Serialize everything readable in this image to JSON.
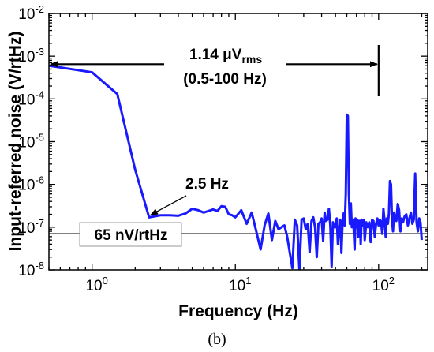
{
  "chart_data": {
    "type": "line",
    "xlabel": "Frequency (Hz)",
    "ylabel": "Input-referred noise (V/rtHz)",
    "xscale": "log",
    "yscale": "log",
    "xlim": [
      0.5,
      220
    ],
    "ylim": [
      1e-08,
      0.01
    ],
    "x_ticks": [
      {
        "value": 1,
        "base": "10",
        "exp": "0"
      },
      {
        "value": 10,
        "base": "10",
        "exp": "1"
      },
      {
        "value": 100,
        "base": "10",
        "exp": "2"
      }
    ],
    "y_ticks": [
      {
        "value": 1e-08,
        "base": "10",
        "exp": "-8"
      },
      {
        "value": 1e-07,
        "base": "10",
        "exp": "-7"
      },
      {
        "value": 1e-06,
        "base": "10",
        "exp": "-6"
      },
      {
        "value": 1e-05,
        "base": "10",
        "exp": "-5"
      },
      {
        "value": 0.0001,
        "base": "10",
        "exp": "-4"
      },
      {
        "value": 0.001,
        "base": "10",
        "exp": "-3"
      },
      {
        "value": 0.01,
        "base": "10",
        "exp": "-2"
      }
    ],
    "series": [
      {
        "color": "#1a1aff",
        "points": [
          [
            0.5,
            0.0006
          ],
          [
            1.0,
            0.00042
          ],
          [
            1.5,
            0.00013
          ],
          [
            2.0,
            2.2e-06
          ],
          [
            2.5,
            1.7e-07
          ],
          [
            3.0,
            1.9e-07
          ],
          [
            3.5,
            1.9e-07
          ],
          [
            4.0,
            1.85e-07
          ],
          [
            4.5,
            2.1e-07
          ],
          [
            5.0,
            2.7e-07
          ],
          [
            5.5,
            2.5e-07
          ],
          [
            6.0,
            2.2e-07
          ],
          [
            6.5,
            2.4e-07
          ],
          [
            7.0,
            2.6e-07
          ],
          [
            7.5,
            2.4e-07
          ],
          [
            8.0,
            3.1e-07
          ],
          [
            8.5,
            3e-07
          ],
          [
            9.0,
            2e-07
          ],
          [
            9.5,
            1.9e-07
          ],
          [
            10.0,
            1.7e-07
          ],
          [
            11.0,
            2.5e-07
          ],
          [
            12.0,
            1.2e-07
          ],
          [
            13.0,
            2.2e-07
          ],
          [
            14.0,
            8e-08
          ],
          [
            15.0,
            3e-08
          ],
          [
            16.0,
            1.1e-07
          ],
          [
            17.0,
            2.1e-07
          ],
          [
            18.0,
            5e-08
          ],
          [
            19.0,
            1.4e-07
          ],
          [
            20.0,
            9e-08
          ],
          [
            21.0,
            1e-07
          ],
          [
            22.0,
            1.1e-07
          ],
          [
            23.0,
            6e-08
          ],
          [
            24.0,
            2.5e-08
          ],
          [
            25.0,
            1.1e-08
          ],
          [
            26.0,
            1.5e-07
          ],
          [
            27.0,
            1.1e-07
          ],
          [
            28.0,
            1e-08
          ],
          [
            29.0,
            1.5e-07
          ],
          [
            30.0,
            1.6e-07
          ],
          [
            31.0,
            9e-08
          ],
          [
            32.0,
            1.2e-07
          ],
          [
            33.0,
            2.6e-08
          ],
          [
            34.0,
            1.4e-07
          ],
          [
            35.0,
            1.7e-07
          ],
          [
            36.0,
            1e-07
          ],
          [
            37.0,
            2e-08
          ],
          [
            38.0,
            1.2e-07
          ],
          [
            39.0,
            1.3e-07
          ],
          [
            40.0,
            1.6e-07
          ],
          [
            41.0,
            4.8e-08
          ],
          [
            42.0,
            2.2e-07
          ],
          [
            43.0,
            1.4e-07
          ],
          [
            44.0,
            1.5e-07
          ],
          [
            45.0,
            2.7e-07
          ],
          [
            46.0,
            1.1e-07
          ],
          [
            47.0,
            1.2e-08
          ],
          [
            48.0,
            1.3e-07
          ],
          [
            49.0,
            1e-07
          ],
          [
            50.0,
            1e-07
          ],
          [
            51.0,
            1.6e-07
          ],
          [
            52.0,
            4e-08
          ],
          [
            53.0,
            9e-08
          ],
          [
            54.0,
            1.5e-07
          ],
          [
            55.0,
            2.5e-08
          ],
          [
            56.0,
            1.3e-07
          ],
          [
            57.0,
            2.1e-07
          ],
          [
            58.0,
            1.1e-07
          ],
          [
            59.0,
            6e-07
          ],
          [
            60.0,
            4.3e-05
          ],
          [
            61.0,
            4e-05
          ],
          [
            62.0,
            6e-07
          ],
          [
            63.0,
            1.2e-07
          ],
          [
            64.0,
            3.6e-07
          ],
          [
            65.0,
            1e-07
          ],
          [
            66.0,
            1.5e-07
          ],
          [
            67.0,
            9e-08
          ],
          [
            68.0,
            3e-08
          ],
          [
            69.0,
            1.6e-07
          ],
          [
            70.0,
            1e-07
          ],
          [
            71.0,
            1.5e-07
          ],
          [
            72.0,
            6e-08
          ],
          [
            73.0,
            1.4e-07
          ],
          [
            74.0,
            1.4e-07
          ],
          [
            75.0,
            4e-08
          ],
          [
            76.0,
            1.5e-07
          ],
          [
            77.0,
            1.3e-07
          ],
          [
            78.0,
            1.1e-07
          ],
          [
            79.0,
            1.5e-07
          ],
          [
            80.0,
            5e-08
          ],
          [
            82.0,
            1.3e-07
          ],
          [
            84.0,
            1e-07
          ],
          [
            86.0,
            1.3e-07
          ],
          [
            88.0,
            4.5e-08
          ],
          [
            90.0,
            1.5e-07
          ],
          [
            92.0,
            1.4e-07
          ],
          [
            94.0,
            6e-08
          ],
          [
            96.0,
            1.2e-07
          ],
          [
            98.0,
            1.6e-07
          ],
          [
            100.0,
            1.1e-07
          ],
          [
            102.0,
            1.5e-07
          ],
          [
            104.0,
            1.3e-07
          ],
          [
            106.0,
            7e-08
          ],
          [
            108.0,
            2.7e-07
          ],
          [
            110.0,
            1.4e-07
          ],
          [
            112.0,
            6e-08
          ],
          [
            114.0,
            1.6e-07
          ],
          [
            116.0,
            1.2e-07
          ],
          [
            118.0,
            2.1e-07
          ],
          [
            120.0,
            1.2e-06
          ],
          [
            122.0,
            1e-06
          ],
          [
            124.0,
            1.5e-07
          ],
          [
            126.0,
            8e-08
          ],
          [
            128.0,
            2.2e-07
          ],
          [
            130.0,
            1.8e-07
          ],
          [
            133.0,
            1.4e-07
          ],
          [
            136.0,
            3.5e-07
          ],
          [
            139.0,
            2.5e-07
          ],
          [
            142.0,
            8e-08
          ],
          [
            145.0,
            1.6e-07
          ],
          [
            148.0,
            1.3e-07
          ],
          [
            152.0,
            1.8e-07
          ],
          [
            156.0,
            2e-07
          ],
          [
            160.0,
            1.1e-07
          ],
          [
            164.0,
            1.6e-07
          ],
          [
            168.0,
            2.2e-07
          ],
          [
            172.0,
            1.2e-07
          ],
          [
            176.0,
            1.5e-07
          ],
          [
            180.0,
            1.8e-06
          ],
          [
            184.0,
            1.3e-07
          ],
          [
            188.0,
            8e-08
          ],
          [
            192.0,
            1.6e-07
          ],
          [
            196.0,
            1.3e-07
          ],
          [
            200.0,
            5e-08
          ]
        ]
      }
    ],
    "hline": {
      "value": 7e-08,
      "x_from": 0.5,
      "x_to": 220
    },
    "band": {
      "x_from": 0.5,
      "x_to": 100,
      "y": 0.00065,
      "text1": "1.14 μV",
      "text1_sub": "rms",
      "text2": "(0.5-100 Hz)"
    },
    "annotations": [
      {
        "text": "2.5 Hz",
        "x": 2.5,
        "y": 1.7e-07
      },
      {
        "text": "65 nV/rtHz"
      }
    ]
  },
  "caption": "(b)"
}
